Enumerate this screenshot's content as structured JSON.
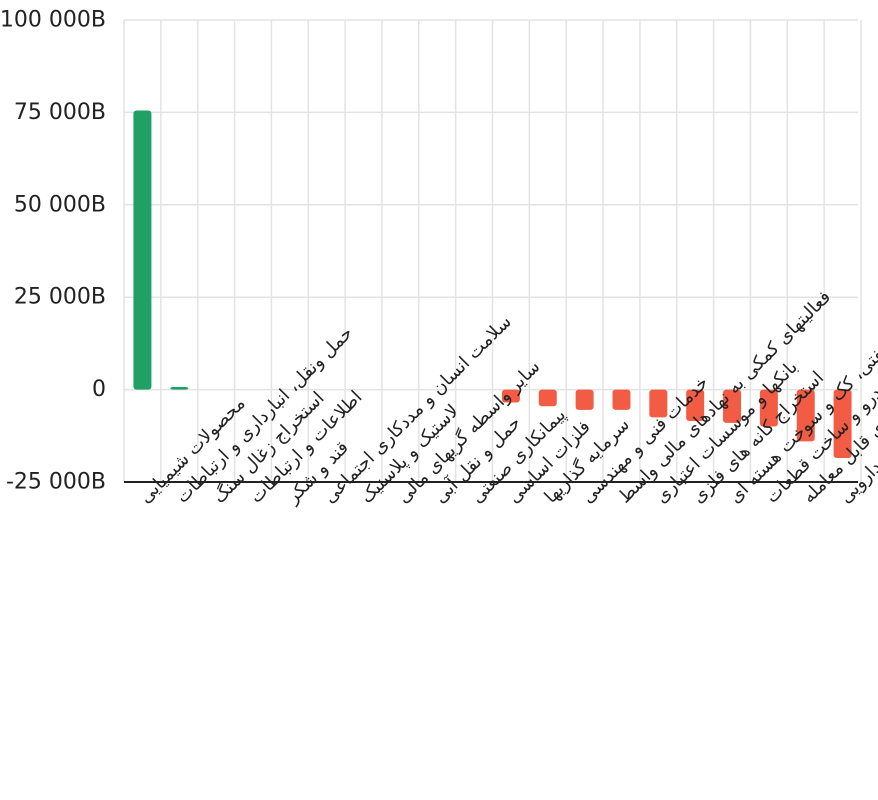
{
  "chart_data": {
    "type": "bar",
    "categories": [
      "محصولات شیمیایی",
      "حمل ونقل، انبارداری و ارتباطات",
      "استخراج زغال سنگ",
      "اطلاعات و ارتباطات",
      "قند و شکر",
      "سلامت انسان و مددکاری اجتماعی",
      "لاستیک و پلاستیک",
      "سایر واسطه گریهای مالی",
      "حمل و نقل آبی",
      "پیمانکاری صنعتی",
      "فلزات اساسی",
      "سرمایه گذاریها",
      "خدمات فنی و مهندسی",
      "فعالیتهای کمکی به نهادهای مالی واسط",
      "بانکها و موسسات اعتباری",
      "استخراج کانه های فلزی",
      "فراورده های نفتی، کک و سوخت هسته ای",
      "خودرو و ساخت قطعات",
      "صندوق سرمایه گذاری قابل معامله",
      "مواد و محصولات دارویی"
    ],
    "values": [
      75500,
      700,
      0,
      0,
      0,
      0,
      0,
      0,
      0,
      0,
      -3500,
      -4500,
      -5500,
      -5500,
      -7500,
      -8500,
      -9000,
      -10000,
      -14000,
      -18500
    ],
    "ylim": [
      -25000,
      100000
    ],
    "yticks": [
      -25000,
      0,
      25000,
      50000,
      75000,
      100000
    ],
    "ytick_labels": [
      "-25 000B",
      "0",
      "25 000B",
      "50 000B",
      "75 000B",
      "100 000B"
    ],
    "title": "",
    "xlabel": "",
    "ylabel": "",
    "grid": true,
    "colors": {
      "positive": "#20a064",
      "negative": "#f25c45",
      "grid": "#e3e3e3",
      "axis": "#222222"
    }
  }
}
